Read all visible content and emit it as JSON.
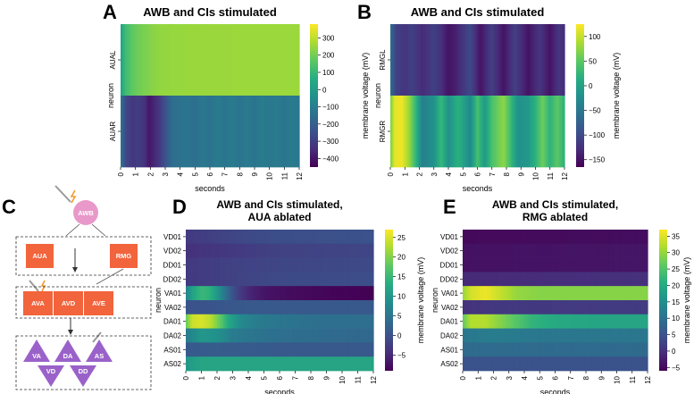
{
  "panels": {
    "A": "A",
    "B": "B",
    "C": "C",
    "D": "D",
    "E": "E"
  },
  "diagram": {
    "sensory": "AWB",
    "inter1": [
      "AUA",
      "RMG"
    ],
    "command": [
      "AVA",
      "AVD",
      "AVE"
    ],
    "motor": [
      "VA",
      "DA",
      "AS",
      "VD",
      "DD"
    ],
    "colors": {
      "sensory": "#e899c9",
      "inter": "#f2643c",
      "motor": "#9a62c9"
    }
  },
  "chart_data": [
    {
      "id": "A",
      "type": "heatmap",
      "title": "AWB and CIs stimulated",
      "xlabel": "seconds",
      "ylabel": "neuron",
      "x": [
        0,
        1,
        2,
        3,
        4,
        5,
        6,
        7,
        8,
        9,
        10,
        11,
        12
      ],
      "rows": [
        "AUAL",
        "AUAR"
      ],
      "colorbar": {
        "label": "membrane voltage (mV)",
        "range": [
          -450,
          380
        ],
        "ticks": [
          300,
          200,
          100,
          0,
          -100,
          -200,
          -300,
          -400
        ]
      },
      "profiles": [
        [
          [
            0,
            20
          ],
          [
            0.3,
            110
          ],
          [
            0.8,
            170
          ],
          [
            1.3,
            200
          ],
          [
            1.8,
            215
          ],
          [
            2.2,
            230
          ],
          [
            2.6,
            240
          ],
          [
            3.2,
            245
          ],
          [
            5,
            250
          ],
          [
            8,
            252
          ],
          [
            12,
            252
          ]
        ],
        [
          [
            0,
            -120
          ],
          [
            0.3,
            -260
          ],
          [
            0.8,
            -320
          ],
          [
            1.2,
            -300
          ],
          [
            1.6,
            -330
          ],
          [
            1.9,
            -400
          ],
          [
            2.1,
            -380
          ],
          [
            2.5,
            -330
          ],
          [
            3,
            -240
          ],
          [
            3.5,
            -150
          ],
          [
            4,
            -140
          ],
          [
            4.5,
            -130
          ],
          [
            5,
            -150
          ],
          [
            5.5,
            -120
          ],
          [
            6,
            -140
          ],
          [
            6.5,
            -110
          ],
          [
            7,
            -130
          ],
          [
            7.5,
            -110
          ],
          [
            8,
            -130
          ],
          [
            8.5,
            -110
          ],
          [
            9,
            -135
          ],
          [
            9.5,
            -105
          ],
          [
            10,
            -125
          ],
          [
            10.5,
            -105
          ],
          [
            11,
            -130
          ],
          [
            11.5,
            -110
          ],
          [
            12,
            -120
          ]
        ]
      ]
    },
    {
      "id": "B",
      "type": "heatmap",
      "title": "AWB and CIs stimulated",
      "xlabel": "seconds",
      "ylabel": "neuron",
      "x": [
        0,
        1,
        2,
        3,
        4,
        5,
        6,
        7,
        8,
        9,
        10,
        11,
        12
      ],
      "rows": [
        "RMGL",
        "RMGR"
      ],
      "colorbar": {
        "label": "membrane voltage (mV)",
        "range": [
          -165,
          125
        ],
        "ticks": [
          100,
          50,
          0,
          -50,
          -100,
          -150
        ]
      },
      "profiles": [
        [
          [
            0,
            -60
          ],
          [
            0.4,
            -110
          ],
          [
            1,
            -120
          ],
          [
            1.5,
            -110
          ],
          [
            2.2,
            -130
          ],
          [
            3,
            -110
          ],
          [
            3.5,
            -125
          ],
          [
            4,
            -150
          ],
          [
            4.5,
            -140
          ],
          [
            5.5,
            -100
          ],
          [
            6.2,
            -150
          ],
          [
            7,
            -110
          ],
          [
            7.8,
            -150
          ],
          [
            8.6,
            -110
          ],
          [
            9.5,
            -150
          ],
          [
            10.3,
            -120
          ],
          [
            11,
            -150
          ],
          [
            11.6,
            -120
          ],
          [
            12,
            -130
          ]
        ],
        [
          [
            0,
            60
          ],
          [
            0.3,
            115
          ],
          [
            0.8,
            118
          ],
          [
            1.3,
            80
          ],
          [
            1.8,
            20
          ],
          [
            2.2,
            -40
          ],
          [
            3,
            -20
          ],
          [
            3.5,
            30
          ],
          [
            4,
            -20
          ],
          [
            4.7,
            20
          ],
          [
            5.5,
            -30
          ],
          [
            6,
            40
          ],
          [
            6.5,
            -10
          ],
          [
            7,
            40
          ],
          [
            7.8,
            75
          ],
          [
            8.2,
            40
          ],
          [
            8.8,
            -20
          ],
          [
            9.5,
            -10
          ],
          [
            10,
            20
          ],
          [
            10.5,
            60
          ],
          [
            11,
            20
          ],
          [
            11.5,
            50
          ],
          [
            12,
            20
          ]
        ]
      ]
    },
    {
      "id": "D",
      "type": "heatmap",
      "title": "AWB and CIs stimulated,",
      "title2": "AUA ablated",
      "xlabel": "seconds",
      "ylabel": "neuron",
      "x": [
        0,
        1,
        2,
        3,
        4,
        5,
        6,
        7,
        8,
        9,
        10,
        11,
        12
      ],
      "rows": [
        "VD01",
        "VD02",
        "DD01",
        "DD02",
        "VA01",
        "VA02",
        "DA01",
        "DA02",
        "AS01",
        "AS02"
      ],
      "colorbar": {
        "label": "membrane voltage (mV)",
        "range": [
          -9,
          27
        ],
        "ticks": [
          25,
          20,
          15,
          10,
          5,
          0,
          -5
        ]
      },
      "profiles": [
        [
          [
            0,
            -3
          ],
          [
            2,
            -2
          ],
          [
            4,
            -1
          ],
          [
            6,
            -0.5
          ],
          [
            12,
            0
          ]
        ],
        [
          [
            0,
            -4
          ],
          [
            3,
            -3
          ],
          [
            6,
            -2
          ],
          [
            12,
            -1.5
          ]
        ],
        [
          [
            0,
            -3
          ],
          [
            3,
            -2
          ],
          [
            6,
            -1.5
          ],
          [
            12,
            -1
          ]
        ],
        [
          [
            0,
            -3
          ],
          [
            3,
            -2
          ],
          [
            6,
            -1
          ],
          [
            12,
            -0.5
          ]
        ],
        [
          [
            0,
            7
          ],
          [
            0.5,
            12
          ],
          [
            1,
            15
          ],
          [
            1.5,
            14
          ],
          [
            2,
            10
          ],
          [
            2.5,
            5
          ],
          [
            3,
            0
          ],
          [
            3.5,
            -3
          ],
          [
            4,
            -5
          ],
          [
            5,
            -7
          ],
          [
            7,
            -8
          ],
          [
            9,
            -8.5
          ],
          [
            12,
            -9
          ]
        ],
        [
          [
            0,
            0
          ],
          [
            2,
            0.5
          ],
          [
            4,
            1
          ],
          [
            12,
            1
          ]
        ],
        [
          [
            0,
            18
          ],
          [
            0.4,
            24
          ],
          [
            1,
            25
          ],
          [
            1.6,
            23
          ],
          [
            2.2,
            18
          ],
          [
            2.8,
            12
          ],
          [
            3.5,
            8
          ],
          [
            4.5,
            6
          ],
          [
            6,
            5
          ],
          [
            9,
            4
          ],
          [
            12,
            4
          ]
        ],
        [
          [
            0,
            6
          ],
          [
            1,
            10
          ],
          [
            2,
            9
          ],
          [
            3,
            6
          ],
          [
            4,
            5
          ],
          [
            6,
            4
          ],
          [
            12,
            3
          ]
        ],
        [
          [
            0,
            1
          ],
          [
            2,
            1.5
          ],
          [
            6,
            1
          ],
          [
            12,
            1
          ]
        ],
        [
          [
            0,
            10
          ],
          [
            1,
            12
          ],
          [
            2,
            12
          ],
          [
            4,
            12
          ],
          [
            8,
            12
          ],
          [
            12,
            12
          ]
        ]
      ]
    },
    {
      "id": "E",
      "type": "heatmap",
      "title": "AWB and CIs stimulated,",
      "title2": "RMG ablated",
      "xlabel": "seconds",
      "ylabel": "neuron",
      "x": [
        0,
        1,
        2,
        3,
        4,
        5,
        6,
        7,
        8,
        9,
        10,
        11,
        12
      ],
      "rows": [
        "VD01",
        "VD02",
        "DD01",
        "DD02",
        "VA01",
        "VA02",
        "DA01",
        "DA02",
        "AS01",
        "AS02"
      ],
      "colorbar": {
        "label": "membrane voltage (mV)",
        "range": [
          -6,
          37
        ],
        "ticks": [
          35,
          30,
          25,
          20,
          15,
          10,
          5,
          0,
          -5
        ]
      },
      "profiles": [
        [
          [
            0,
            -5
          ],
          [
            12,
            -4.5
          ]
        ],
        [
          [
            0,
            -4
          ],
          [
            12,
            -3.5
          ]
        ],
        [
          [
            0,
            -4
          ],
          [
            12,
            -3.5
          ]
        ],
        [
          [
            0,
            -1
          ],
          [
            12,
            0
          ]
        ],
        [
          [
            0,
            30
          ],
          [
            0.5,
            34
          ],
          [
            1.5,
            36
          ],
          [
            2.5,
            33
          ],
          [
            3.5,
            30
          ],
          [
            5,
            29
          ],
          [
            8,
            29
          ],
          [
            12,
            29
          ]
        ],
        [
          [
            0,
            0
          ],
          [
            2,
            1
          ],
          [
            12,
            1.5
          ]
        ],
        [
          [
            0,
            26
          ],
          [
            0.5,
            32
          ],
          [
            1.5,
            32
          ],
          [
            3,
            27
          ],
          [
            4.5,
            22
          ],
          [
            6,
            20
          ],
          [
            9,
            19
          ],
          [
            12,
            19
          ]
        ],
        [
          [
            0,
            11
          ],
          [
            2,
            12
          ],
          [
            5,
            11
          ],
          [
            12,
            11
          ]
        ],
        [
          [
            0,
            9
          ],
          [
            12,
            9
          ]
        ],
        [
          [
            0,
            5
          ],
          [
            12,
            5
          ]
        ]
      ]
    }
  ]
}
